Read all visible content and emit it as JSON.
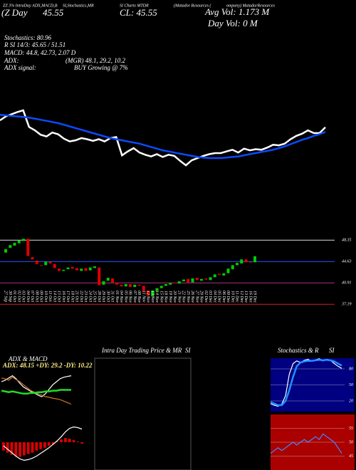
{
  "header": {
    "line1a": "ZZ 3% IntraDay ADX,MACD,B",
    "line1b": "SI,Stochastics,MR",
    "line1c": "SI Charts MTDR",
    "line1d": "(Matador Resources (",
    "line1e": "ompany) MatadorResources",
    "line2a": "(Z  Day",
    "line2b": "45.55",
    "line2c": "CL: 45.55",
    "avgvol": "Avg Vol: 1.173 M",
    "dayvol": "Day Vol: 0  M",
    "stoch": "Stochastics: 80.96",
    "rsi": "R                SI 14/3: 45.65 / 51.51",
    "macd": "MACD: 44.8, 42.73, 2.07 D",
    "adx": "ADX:",
    "adxv": "(MGR) 48.1, 29.2, 10.2",
    "adxs": "ADX  signal:",
    "adxsv": "BUY Growing @ 7%"
  },
  "chart_data": [
    {
      "type": "line",
      "ylim": [
        30,
        55
      ],
      "series": [
        {
          "color": "#ffffff",
          "values": [
            46.8,
            47.5,
            47.9,
            48.3,
            48.6,
            45.6,
            45.0,
            44.2,
            43.9,
            44.6,
            44.3,
            43.5,
            43.0,
            43.2,
            43.6,
            43.4,
            43.1,
            43.4,
            43.0,
            43.6,
            43.8,
            40.5,
            41.2,
            41.8,
            41.0,
            40.6,
            40.3,
            40.7,
            40.2,
            40.6,
            40.4,
            39.5,
            38.7,
            39.6,
            40.0,
            40.4,
            40.7,
            40.9,
            40.9,
            41.2,
            41.5,
            41.0,
            41.7,
            41.4,
            41.6,
            41.5,
            41.9,
            42.4,
            42.3,
            42.6,
            43.4,
            44.0,
            44.4,
            45.0,
            44.5,
            44.5,
            45.55
          ]
        },
        {
          "color": "#0a4bff",
          "values": [
            47.8,
            47.7,
            47.6,
            47.5,
            47.4,
            47.3,
            47.1,
            46.9,
            46.7,
            46.5,
            46.3,
            46.0,
            45.7,
            45.4,
            45.1,
            44.8,
            44.5,
            44.2,
            43.9,
            43.6,
            43.4,
            43.2,
            43.0,
            42.8,
            42.6,
            42.3,
            42.0,
            41.7,
            41.4,
            41.2,
            41.0,
            40.8,
            40.6,
            40.4,
            40.2,
            40.1,
            40.0,
            40.0,
            40.0,
            40.1,
            40.2,
            40.3,
            40.5,
            40.7,
            40.9,
            41.1,
            41.3,
            41.5,
            41.8,
            42.1,
            42.5,
            42.9,
            43.3,
            43.6,
            44.0,
            44.3,
            44.7
          ]
        }
      ]
    },
    {
      "type": "candlestick",
      "ylim": [
        34,
        50
      ],
      "up_color": "#00cc00",
      "down_color": "#dd0000",
      "yticks": [
        48.35,
        44.63,
        40.91,
        37.19
      ],
      "level_colors": [
        "#dddddd",
        "#3355ff",
        "#aa3388",
        "#cc2222"
      ],
      "x": [
        "27 Sep",
        "30 Sep",
        "01 Oct",
        "02 Oct",
        "03 Oct",
        "04 Oct",
        "07 Oct",
        "08 Oct",
        "09 Oct",
        "10 Oct",
        "11 Oct",
        "14 Oct",
        "15 Oct",
        "16 Oct",
        "17 Oct",
        "18 Oct",
        "21 Oct",
        "22 Oct",
        "23 Oct",
        "24 Oct",
        "25 Oct",
        "28 Oct",
        "29 Oct",
        "30 Oct",
        "31 Oct",
        "01 Nov",
        "04 Nov",
        "05 Nov",
        "06 Nov",
        "07 Nov",
        "08 Nov",
        "11 Nov",
        "12 Nov",
        "13 Nov",
        "14 Nov",
        "15 Nov",
        "18 Nov",
        "19 Nov",
        "20 Nov",
        "21 Nov",
        "22 Nov",
        "25 Nov",
        "26 Nov",
        "27 Nov",
        "29 Nov",
        "02 Dec",
        "03 Dec",
        "04 Dec",
        "05 Dec",
        "06 Dec",
        "09 Dec",
        "10 Dec",
        "11 Dec",
        "12 Dec",
        "13 Dec",
        "16 Dec",
        "19 Dec"
      ],
      "open": [
        46.2,
        47.0,
        47.4,
        47.8,
        48.2,
        48.6,
        45.4,
        44.8,
        44.0,
        44.0,
        44.6,
        44.2,
        43.4,
        43.0,
        43.3,
        43.7,
        43.5,
        43.0,
        43.5,
        43.1,
        43.5,
        43.6,
        40.6,
        41.3,
        41.7,
        41.0,
        40.6,
        40.3,
        40.7,
        40.2,
        40.6,
        40.4,
        39.6,
        38.6,
        39.5,
        40.0,
        40.4,
        40.6,
        41.0,
        40.8,
        41.2,
        41.6,
        41.0,
        41.8,
        41.3,
        41.7,
        41.4,
        41.9,
        42.5,
        42.2,
        42.6,
        43.3,
        44.0,
        44.3,
        45.0,
        44.6,
        44.5
      ],
      "close": [
        46.8,
        47.5,
        47.9,
        48.3,
        48.6,
        45.6,
        45.0,
        44.2,
        43.9,
        44.6,
        44.3,
        43.5,
        43.0,
        43.2,
        43.6,
        43.4,
        43.1,
        43.4,
        43.0,
        43.6,
        43.8,
        40.5,
        41.2,
        41.8,
        41.0,
        40.6,
        40.3,
        40.7,
        40.2,
        40.6,
        40.4,
        39.5,
        38.7,
        39.6,
        40.0,
        40.4,
        40.7,
        40.9,
        40.9,
        41.2,
        41.5,
        41.0,
        41.7,
        41.4,
        41.6,
        41.5,
        41.9,
        42.4,
        42.3,
        42.6,
        43.4,
        44.0,
        44.4,
        45.0,
        44.5,
        44.5,
        45.55
      ]
    },
    {
      "type": "line",
      "title": "ADX  & MACD",
      "label": "ADX: 48.15  +DY: 29.2  -DY: 10.22",
      "ylim": [
        0,
        60
      ],
      "series": [
        {
          "color": "#ffffff",
          "values": [
            40,
            42,
            45,
            48,
            44,
            38,
            33,
            30,
            27,
            25,
            22,
            20,
            24,
            30,
            36,
            40,
            44,
            46,
            47,
            48
          ]
        },
        {
          "color": "#cc7722",
          "values": [
            45,
            44,
            42,
            46,
            43,
            40,
            36,
            32,
            28,
            26,
            24,
            22,
            20,
            19,
            18,
            17,
            16,
            14,
            12,
            10
          ]
        },
        {
          "color": "#22dd22",
          "values": [
            28,
            27,
            26,
            27,
            26,
            25,
            24,
            24,
            25,
            25,
            26,
            26,
            27,
            27,
            28,
            28,
            29,
            29,
            29,
            29
          ]
        }
      ]
    },
    {
      "type": "bar",
      "ylim": [
        -4,
        4
      ],
      "color": "#dd0000",
      "values": [
        -1.2,
        -1.5,
        -1.8,
        -2.0,
        -2.1,
        -1.9,
        -1.7,
        -1.5,
        -1.2,
        -1.0,
        -0.8,
        -0.5,
        -0.3,
        0.1,
        0.4,
        0.6,
        0.5,
        0.3,
        0.1,
        -0.2
      ],
      "series": [
        {
          "color": "#ffffff",
          "values": [
            -0.5,
            -1.0,
            -1.5,
            -2.0,
            -2.4,
            -2.6,
            -2.5,
            -2.3,
            -2.0,
            -1.6,
            -1.2,
            -0.8,
            -0.3,
            0.2,
            0.8,
            1.5,
            2.0,
            2.2,
            2.1,
            1.9
          ]
        }
      ]
    },
    {
      "type": "blank",
      "title": "Intra  Day  Trading Price  & MR",
      "title2": "SI"
    },
    {
      "type": "line",
      "title": "Stochastics & R",
      "title2": "SI",
      "ylim": [
        0,
        100
      ],
      "yticks": [
        80,
        50,
        20
      ],
      "background": "#000080",
      "series": [
        {
          "color": "#ffffff",
          "values": [
            15,
            12,
            10,
            14,
            30,
            70,
            90,
            95,
            92,
            96,
            98,
            94,
            97,
            99,
            95,
            98,
            96,
            90,
            85,
            81
          ]
        },
        {
          "color": "#1e90ff",
          "values": [
            18,
            15,
            12,
            12,
            20,
            40,
            65,
            85,
            92,
            94,
            95,
            95,
            96,
            97,
            96,
            97,
            96,
            94,
            90,
            86
          ]
        }
      ]
    },
    {
      "type": "line",
      "ylim": [
        40,
        60
      ],
      "yticks": [
        55,
        50,
        45
      ],
      "background": "#aa0000",
      "series": [
        {
          "color": "#4488ff",
          "values": [
            46,
            47,
            48,
            47,
            48,
            49,
            50,
            49,
            50,
            51,
            50,
            51,
            52,
            51,
            53,
            52,
            51,
            50,
            48,
            46
          ]
        }
      ]
    }
  ]
}
